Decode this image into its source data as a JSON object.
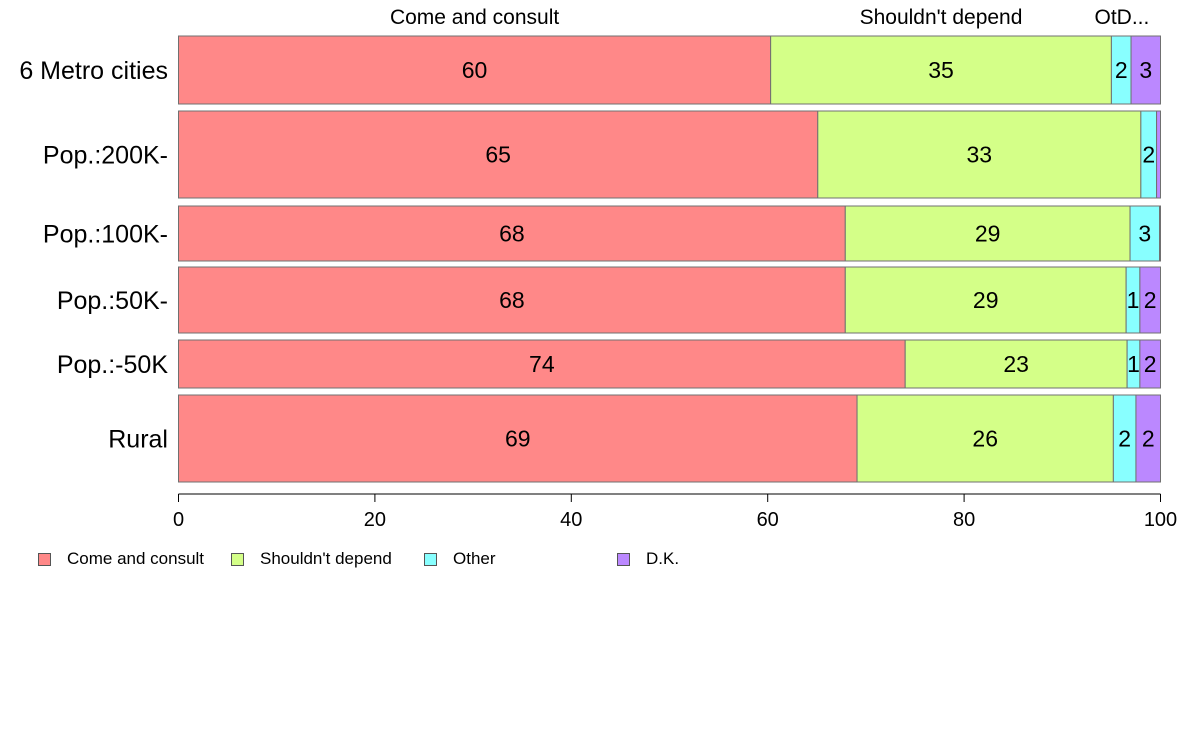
{
  "chart_data": {
    "type": "bar",
    "orientation": "horizontal",
    "stacked": true,
    "categories": [
      "6 Metro cities",
      "Pop.:200K-",
      "Pop.:100K-",
      "Pop.:50K-",
      "Pop.:-50K",
      "Rural"
    ],
    "series": [
      {
        "name": "Come and consult",
        "color": "#FF8888",
        "values": [
          60.3,
          65.1,
          67.9,
          67.9,
          74.0,
          69.1
        ],
        "labels": [
          "60",
          "65",
          "68",
          "68",
          "74",
          "69"
        ]
      },
      {
        "name": "Shouldn't depend",
        "color": "#D4FF88",
        "values": [
          34.7,
          32.9,
          29.0,
          28.6,
          22.6,
          26.1
        ],
        "labels": [
          "35",
          "33",
          "29",
          "29",
          "23",
          "26"
        ]
      },
      {
        "name": "Other",
        "color": "#88FFFF",
        "values": [
          2.0,
          1.6,
          3.0,
          1.4,
          1.3,
          2.3
        ],
        "labels": [
          "2",
          "2",
          "3",
          "1",
          "1",
          "2"
        ]
      },
      {
        "name": "D.K.",
        "color": "#BB88FF",
        "values": [
          3.0,
          0.4,
          0.1,
          2.1,
          2.1,
          2.5
        ],
        "labels": [
          "3",
          "",
          "",
          "2",
          "2",
          "2"
        ]
      }
    ],
    "top_labels": [
      "Come and consult",
      "Shouldn't depend",
      "OtD..."
    ],
    "xlim": [
      0,
      100
    ],
    "xticks": [
      "0",
      "20",
      "40",
      "60",
      "80",
      "100"
    ],
    "grid": false,
    "legend_position": "bottom-left"
  }
}
